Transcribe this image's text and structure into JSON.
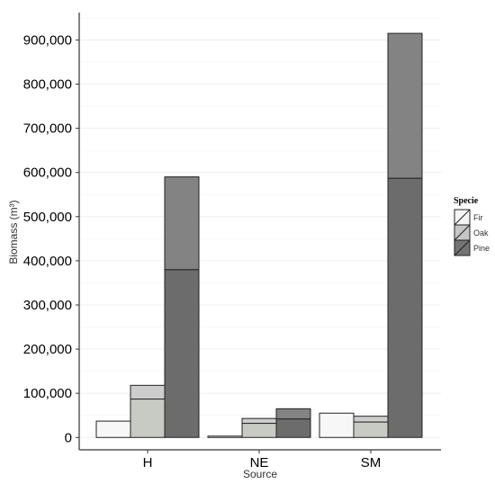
{
  "chart_data": {
    "type": "bar",
    "title": "",
    "xlabel": "Source",
    "ylabel": "Biomass (m³)",
    "ylim": [
      -28000,
      962000
    ],
    "yticks": [
      0,
      100000,
      200000,
      300000,
      400000,
      500000,
      600000,
      700000,
      800000,
      900000
    ],
    "ytick_labels": [
      "0",
      "100,000",
      "200,000",
      "300,000",
      "400,000",
      "500,000",
      "600,000",
      "700,000",
      "800,000",
      "900,000"
    ],
    "categories": [
      "H",
      "NE",
      "SM"
    ],
    "legend": {
      "title": "Specie",
      "placement": "right",
      "entries": [
        "Fir",
        "Oak",
        "Pine"
      ]
    },
    "grid": true,
    "series": [
      {
        "name": "Fir",
        "lower": [
          0,
          0,
          0
        ],
        "total": [
          37000,
          3000,
          55000
        ]
      },
      {
        "name": "Oak",
        "lower": [
          87000,
          32000,
          35000
        ],
        "total": [
          118000,
          43000,
          48000
        ]
      },
      {
        "name": "Pine",
        "lower": [
          380000,
          42000,
          587000
        ],
        "total": [
          590000,
          65000,
          915000
        ]
      }
    ],
    "colors": {
      "Fir": {
        "lower": "#f7f7f7",
        "upper": "#f7f7f7"
      },
      "Oak": {
        "lower": "#c8cbc4",
        "upper": "#cdcdcd"
      },
      "Pine": {
        "lower": "#6c6c6c",
        "upper": "#838383"
      },
      "legend": {
        "Fir": "#f5f5f5",
        "Oak": "#c6c6c6",
        "Pine": "#737373"
      }
    }
  }
}
